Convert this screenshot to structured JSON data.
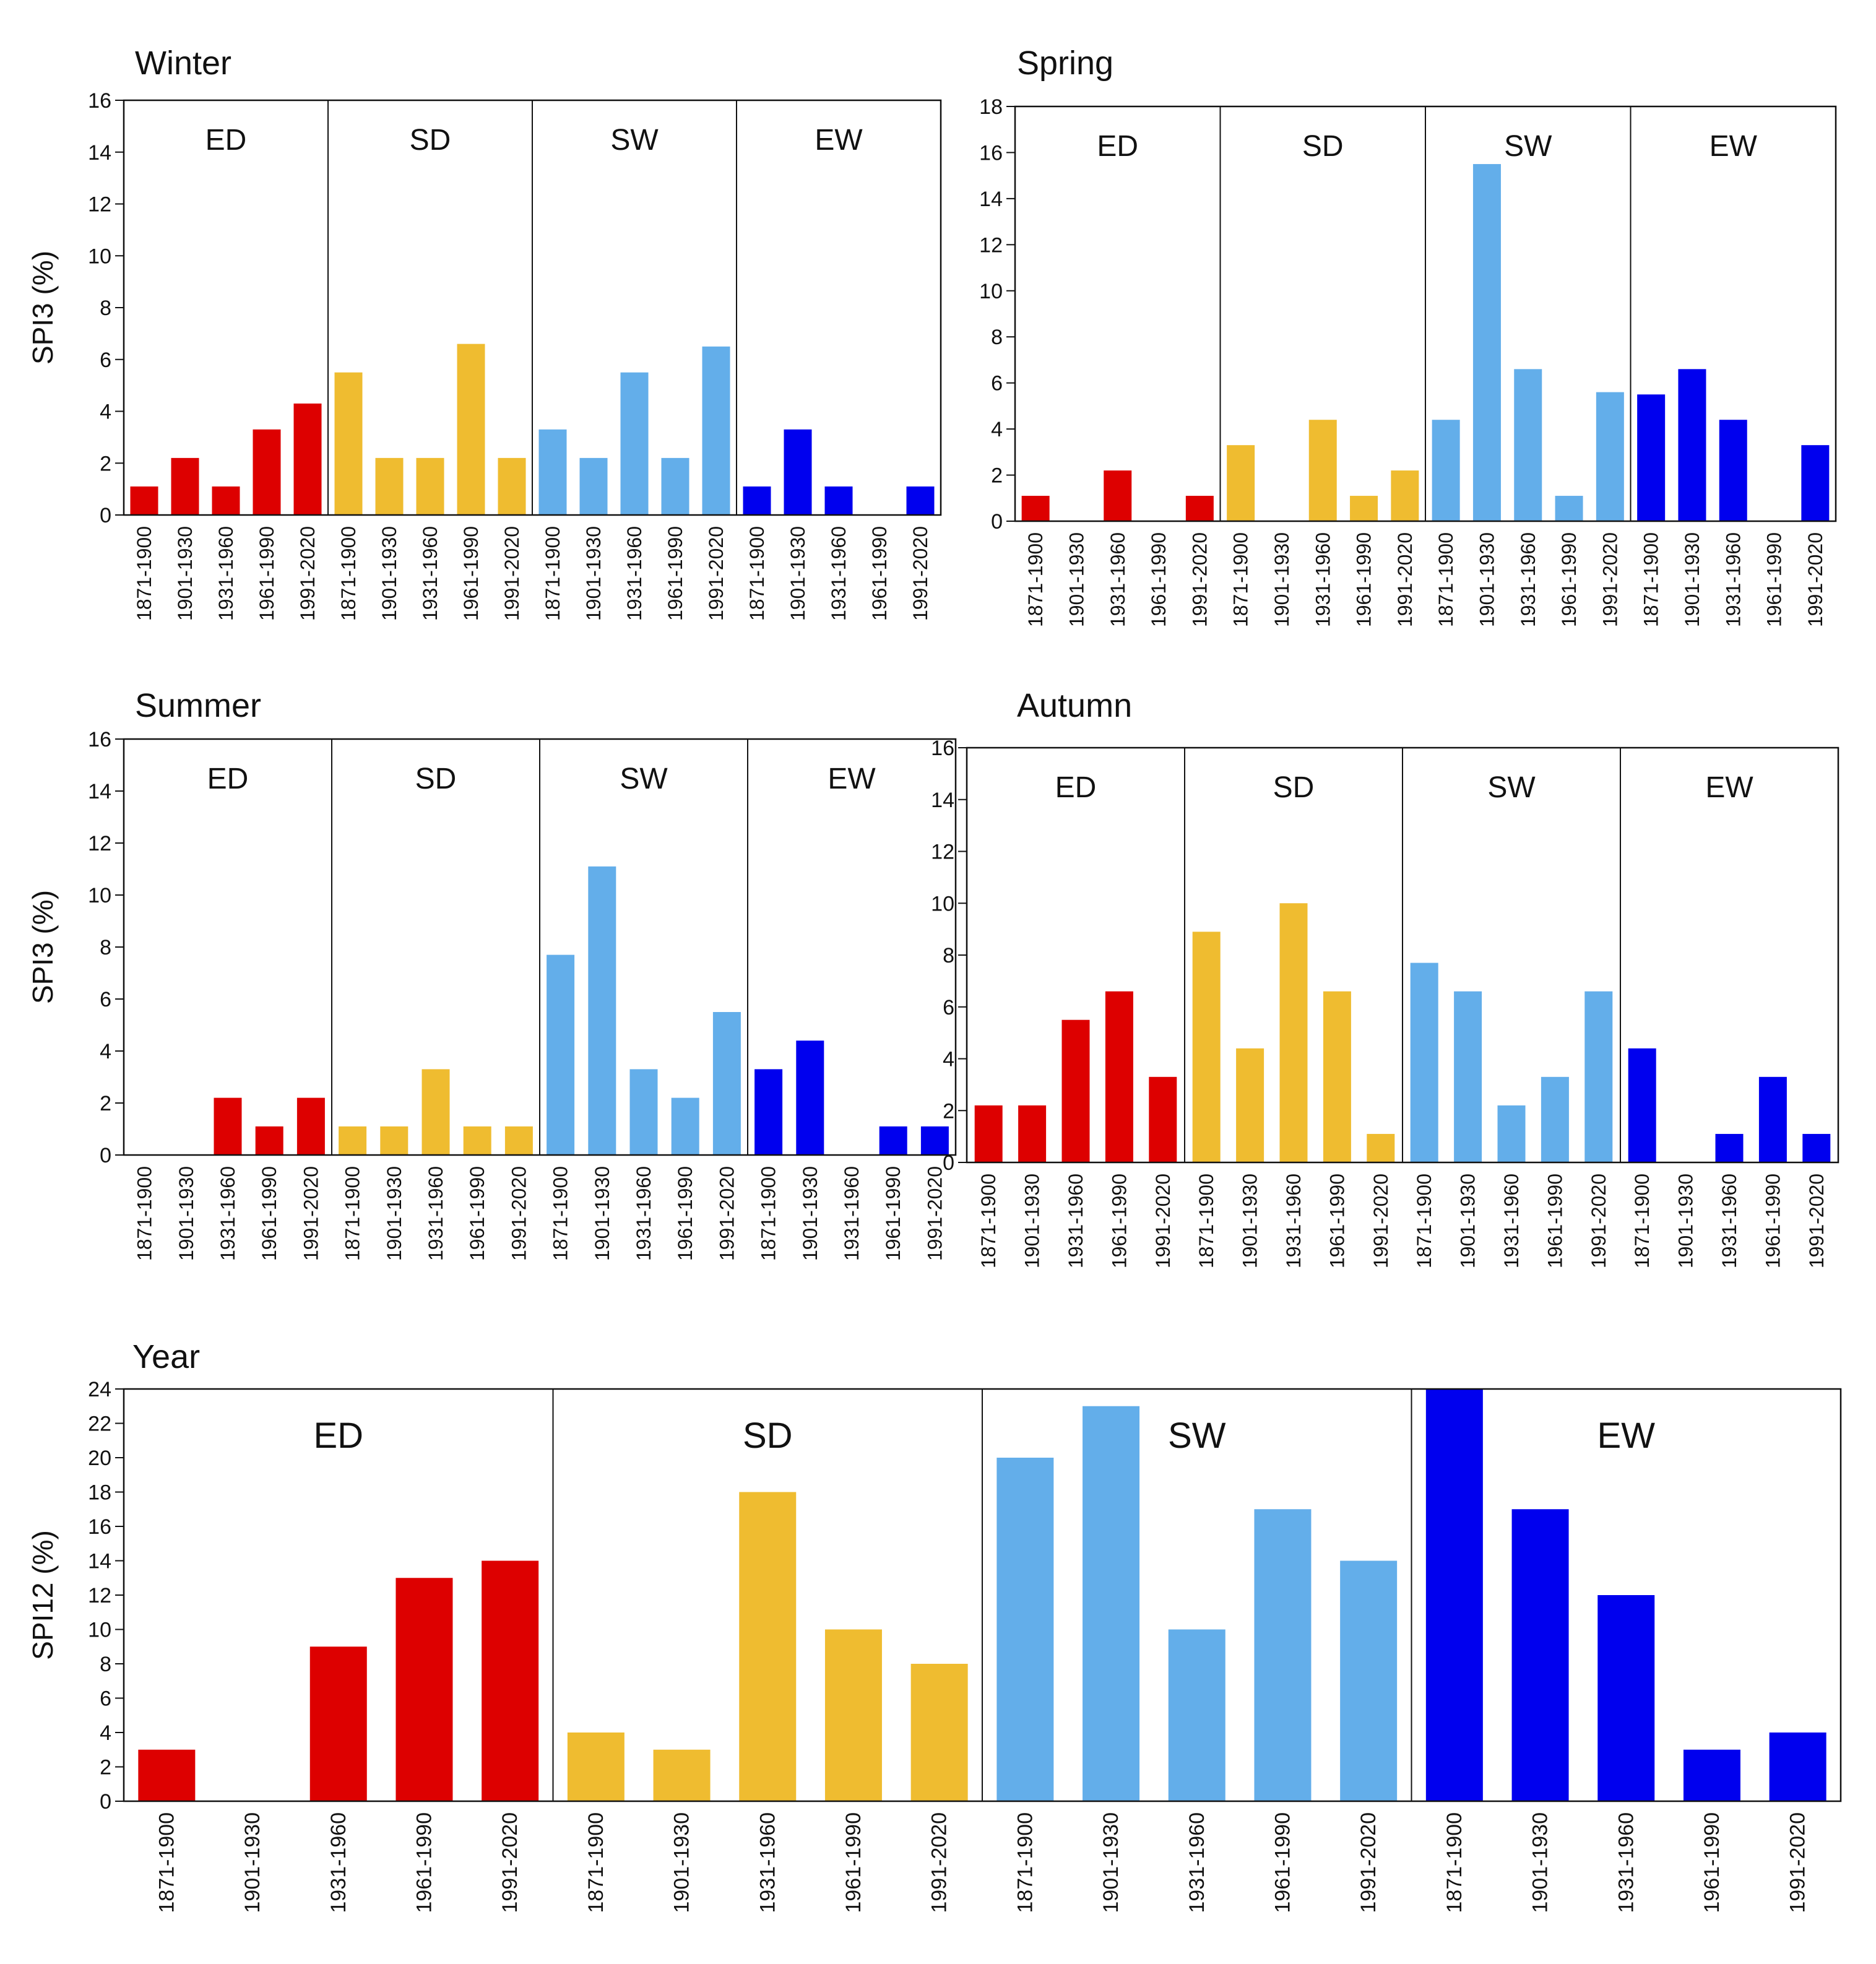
{
  "colors": {
    "ED": "#dd0000",
    "SD": "#efbc30",
    "SW": "#63aeea",
    "EW": "#0000ee"
  },
  "groups": [
    "ED",
    "SD",
    "SW",
    "EW"
  ],
  "periods": [
    "1871-1900",
    "1901-1930",
    "1931-1960",
    "1961-1990",
    "1991-2020"
  ],
  "chart_data": [
    {
      "type": "bar",
      "title": "Winter",
      "ylabel": "SPI3 (%)",
      "ylim": [
        0,
        16
      ],
      "yticks": [
        0,
        2,
        4,
        6,
        8,
        10,
        12,
        14,
        16
      ],
      "categories": [
        "1871-1900",
        "1901-1930",
        "1931-1960",
        "1961-1990",
        "1991-2020"
      ],
      "series": [
        {
          "name": "ED",
          "values": [
            1.1,
            2.2,
            1.1,
            3.3,
            4.3
          ]
        },
        {
          "name": "SD",
          "values": [
            5.5,
            2.2,
            2.2,
            6.6,
            2.2
          ]
        },
        {
          "name": "SW",
          "values": [
            3.3,
            2.2,
            5.5,
            2.2,
            6.5
          ]
        },
        {
          "name": "EW",
          "values": [
            1.1,
            3.3,
            1.1,
            0,
            1.1
          ]
        }
      ]
    },
    {
      "type": "bar",
      "title": "Spring",
      "ylabel": "",
      "ylim": [
        0,
        18
      ],
      "yticks": [
        0,
        2,
        4,
        6,
        8,
        10,
        12,
        14,
        16,
        18
      ],
      "categories": [
        "1871-1900",
        "1901-1930",
        "1931-1960",
        "1961-1990",
        "1991-2020"
      ],
      "series": [
        {
          "name": "ED",
          "values": [
            1.1,
            0,
            2.2,
            0,
            1.1
          ]
        },
        {
          "name": "SD",
          "values": [
            3.3,
            0,
            4.4,
            1.1,
            2.2
          ]
        },
        {
          "name": "SW",
          "values": [
            4.4,
            15.5,
            6.6,
            1.1,
            5.6
          ]
        },
        {
          "name": "EW",
          "values": [
            5.5,
            6.6,
            4.4,
            0,
            3.3
          ]
        }
      ]
    },
    {
      "type": "bar",
      "title": "Summer",
      "ylabel": "SPI3 (%)",
      "ylim": [
        0,
        16
      ],
      "yticks": [
        0,
        2,
        4,
        6,
        8,
        10,
        12,
        14,
        16
      ],
      "categories": [
        "1871-1900",
        "1901-1930",
        "1931-1960",
        "1961-1990",
        "1991-2020"
      ],
      "series": [
        {
          "name": "ED",
          "values": [
            0,
            0,
            2.2,
            1.1,
            2.2
          ]
        },
        {
          "name": "SD",
          "values": [
            1.1,
            1.1,
            3.3,
            1.1,
            1.1
          ]
        },
        {
          "name": "SW",
          "values": [
            7.7,
            11.1,
            3.3,
            2.2,
            5.5
          ]
        },
        {
          "name": "EW",
          "values": [
            3.3,
            4.4,
            0,
            1.1,
            1.1
          ]
        }
      ]
    },
    {
      "type": "bar",
      "title": "Autumn",
      "ylabel": "",
      "ylim": [
        0,
        16
      ],
      "yticks": [
        0,
        2,
        4,
        6,
        8,
        10,
        12,
        14,
        16
      ],
      "categories": [
        "1871-1900",
        "1901-1930",
        "1931-1960",
        "1961-1990",
        "1991-2020"
      ],
      "series": [
        {
          "name": "ED",
          "values": [
            2.2,
            2.2,
            5.5,
            6.6,
            3.3
          ]
        },
        {
          "name": "SD",
          "values": [
            8.9,
            4.4,
            10,
            6.6,
            1.1
          ]
        },
        {
          "name": "SW",
          "values": [
            7.7,
            6.6,
            2.2,
            3.3,
            6.6
          ]
        },
        {
          "name": "EW",
          "values": [
            4.4,
            0,
            1.1,
            3.3,
            1.1
          ]
        }
      ]
    },
    {
      "type": "bar",
      "title": "Year",
      "ylabel": "SPI12 (%)",
      "ylim": [
        0,
        24
      ],
      "yticks": [
        0,
        2,
        4,
        6,
        8,
        10,
        12,
        14,
        16,
        18,
        20,
        22,
        24
      ],
      "categories": [
        "1871-1900",
        "1901-1930",
        "1931-1960",
        "1961-1990",
        "1991-2020"
      ],
      "series": [
        {
          "name": "ED",
          "values": [
            3,
            0,
            9,
            13,
            14
          ]
        },
        {
          "name": "SD",
          "values": [
            4,
            3,
            18,
            10,
            8
          ]
        },
        {
          "name": "SW",
          "values": [
            20,
            23,
            10,
            17,
            14
          ]
        },
        {
          "name": "EW",
          "values": [
            24,
            17,
            12,
            3,
            4
          ]
        }
      ]
    }
  ]
}
